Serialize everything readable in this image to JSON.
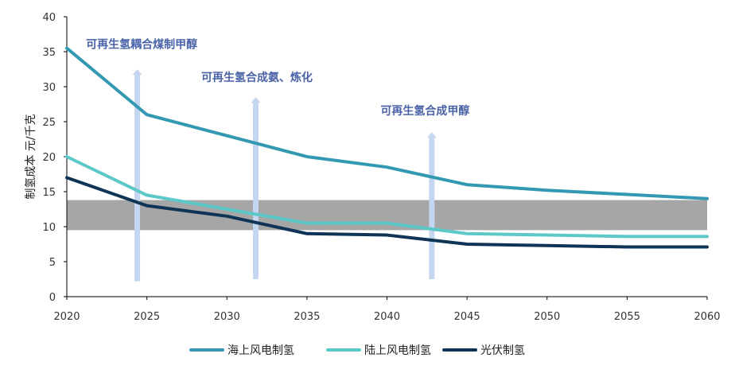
{
  "chart_data": {
    "type": "line",
    "title": "",
    "xlabel": "",
    "ylabel": "制氢成本 元/千克",
    "x": [
      2020,
      2025,
      2030,
      2035,
      2040,
      2045,
      2050,
      2055,
      2060
    ],
    "x_tick_labels": [
      "2020",
      "2025",
      "2030",
      "2035",
      "2040",
      "2045",
      "2050",
      "2055",
      "2060"
    ],
    "xlim": [
      2020,
      2060
    ],
    "ylim": [
      0,
      40
    ],
    "y_ticks": [
      0,
      5,
      10,
      15,
      20,
      25,
      30,
      35,
      40
    ],
    "grid": false,
    "legend_position": "bottom",
    "series": [
      {
        "name": "海上风电制氢",
        "color": "#3399b3",
        "values": [
          35.5,
          26,
          23,
          20,
          18.5,
          16,
          15.2,
          14.6,
          14
        ]
      },
      {
        "name": "陆上风电制氢",
        "color": "#5cc8c8",
        "values": [
          20,
          14.5,
          12.5,
          10.5,
          10.5,
          9,
          8.8,
          8.6,
          8.6
        ]
      },
      {
        "name": "光伏制氢",
        "color": "#0f3556",
        "values": [
          17,
          13,
          11.5,
          9,
          8.8,
          7.5,
          7.3,
          7.1,
          7.1
        ]
      }
    ],
    "band": {
      "from": 9.5,
      "to": 13.8,
      "color": "#a6a6a6"
    },
    "arrows": [
      {
        "x": 2024.4,
        "y_from": 2.2,
        "y_to": 32.5,
        "label": "可再生氢耦合煤制甲醇",
        "label_x": 2021.2,
        "label_y": 35.5
      },
      {
        "x": 2031.8,
        "y_from": 2.5,
        "y_to": 28.5,
        "label": "可再生氢合成氨、炼化",
        "label_x": 2028.4,
        "label_y": 30.8
      },
      {
        "x": 2042.8,
        "y_from": 2.5,
        "y_to": 23.5,
        "label": "可再生氢合成甲醇",
        "label_x": 2039.6,
        "label_y": 26.0
      }
    ],
    "arrow_color": "#c5d6f0"
  }
}
